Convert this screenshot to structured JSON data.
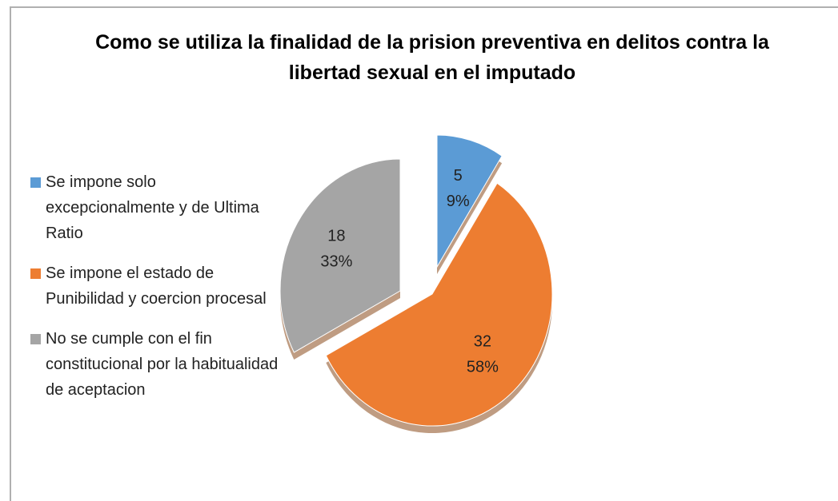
{
  "chart_data": {
    "type": "pie",
    "title": "Como se utiliza la finalidad de la prision preventiva en delitos contra la libertad sexual en el imputado",
    "categories": [
      "Se impone solo excepcionalmente y de Ultima Ratio",
      "Se impone el estado de Punibilidad y coercion procesal",
      "No se cumple con el fin constitucional por la habitualidad de aceptacion"
    ],
    "values": [
      5,
      32,
      18
    ],
    "percent_labels": [
      "9%",
      "58%",
      "33%"
    ],
    "colors": [
      "#5b9bd5",
      "#ed7d31",
      "#a5a5a5"
    ],
    "legend": "left"
  }
}
